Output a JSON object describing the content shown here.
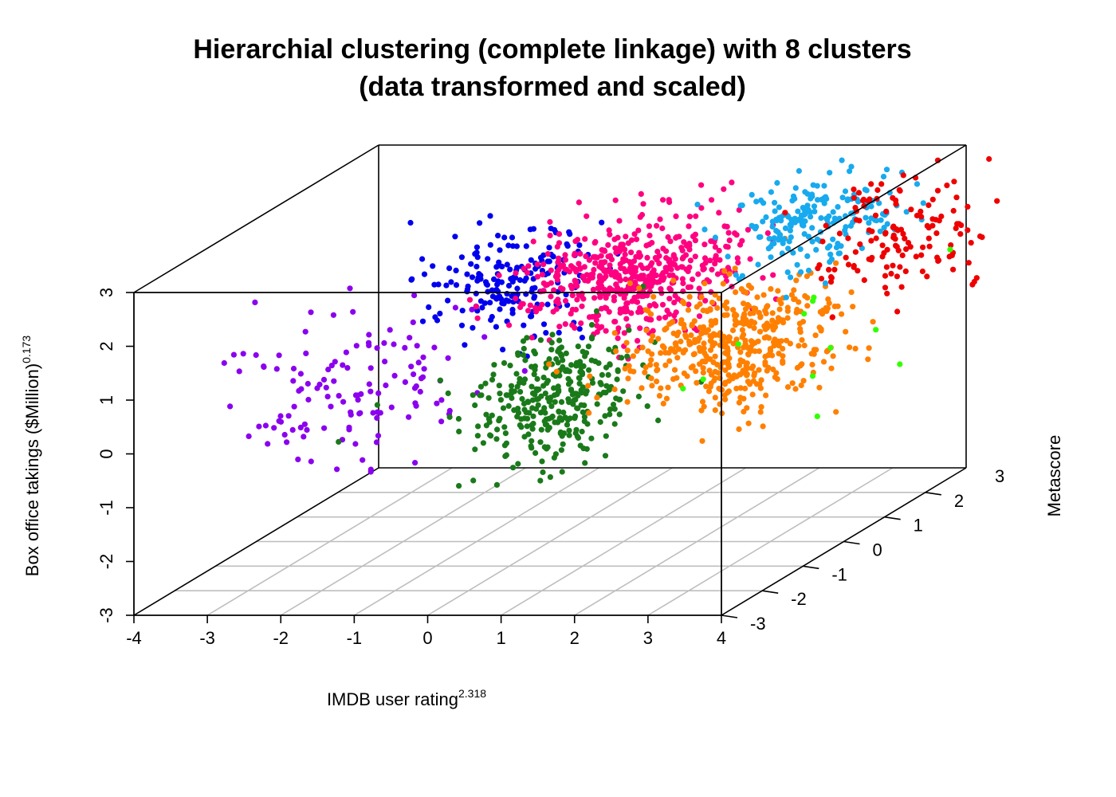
{
  "chart_data": {
    "type": "scatter",
    "subtype": "3d-scatter",
    "title": "Hierarchial clustering (complete linkage) with 8 clusters",
    "subtitle": "(data transformed and scaled)",
    "xlabel": {
      "base": "IMDB user rating",
      "exponent": "2.318"
    },
    "ylabel": "Metascore",
    "zlabel": {
      "base": "Box office takings ($Million)",
      "exponent": "0.173"
    },
    "xlim": [
      -4,
      4
    ],
    "ylim": [
      -3,
      3
    ],
    "zlim": [
      -3,
      3
    ],
    "x_ticks": [
      "-4",
      "-3",
      "-2",
      "-1",
      "0",
      "1",
      "2",
      "3",
      "4"
    ],
    "y_ticks": [
      "-3",
      "-2",
      "-1",
      "0",
      "1",
      "2",
      "3"
    ],
    "z_ticks": [
      "-3",
      "-2",
      "-1",
      "0",
      "1",
      "2",
      "3"
    ],
    "grid": "floor",
    "colors": {
      "axes": "#000000",
      "grid": "#bebebe"
    },
    "series": [
      {
        "color": "#8b00ee",
        "n": 130,
        "center": [
          -2.4,
          -0.4,
          0.0
        ],
        "spread": [
          0.75,
          0.8,
          0.75
        ]
      },
      {
        "color": "#0000ee",
        "n": 190,
        "center": [
          -0.8,
          0.6,
          1.6
        ],
        "spread": [
          0.55,
          0.6,
          0.45
        ]
      },
      {
        "color": "#ff0080",
        "n": 520,
        "center": [
          0.7,
          0.8,
          1.6
        ],
        "spread": [
          0.6,
          0.7,
          0.45
        ]
      },
      {
        "color": "#1a7a1a",
        "n": 330,
        "center": [
          0.4,
          -0.7,
          0.0
        ],
        "spread": [
          0.5,
          0.6,
          0.5
        ]
      },
      {
        "color": "#ff8000",
        "n": 470,
        "center": [
          2.4,
          0.1,
          0.6
        ],
        "spread": [
          0.65,
          0.7,
          0.5
        ]
      },
      {
        "color": "#18aaee",
        "n": 200,
        "center": [
          2.8,
          1.5,
          2.3
        ],
        "spread": [
          0.5,
          0.55,
          0.35
        ]
      },
      {
        "color": "#ee0000",
        "n": 140,
        "center": [
          3.9,
          1.6,
          2.0
        ],
        "spread": [
          0.5,
          0.6,
          0.55
        ]
      },
      {
        "color": "#33ff00",
        "n": 12,
        "center": [
          3.3,
          -0.2,
          0.6
        ],
        "spread": [
          0.6,
          0.9,
          0.5
        ]
      }
    ]
  }
}
